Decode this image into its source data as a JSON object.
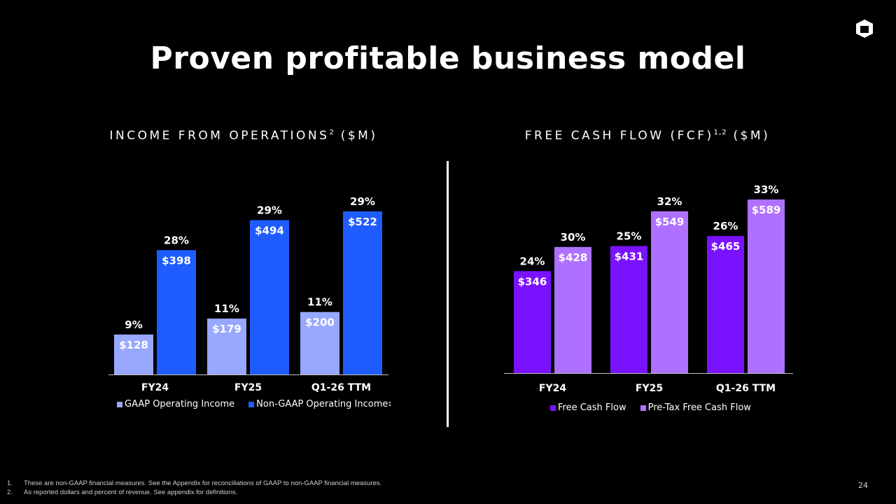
{
  "title": "Proven profitable business model",
  "page_number": "24",
  "footnotes": [
    {
      "num": "1.",
      "text": "These are non-GAAP financial measures. See the Appendix for reconciliations of GAAP to non-GAAP financial measures."
    },
    {
      "num": "2.",
      "text": "As reported dollars and percent of revenue. See appendix for definitions."
    }
  ],
  "chart_data": [
    {
      "type": "bar",
      "title": "INCOME FROM OPERATIONS",
      "title_sup": "2",
      "title_suffix": " ($M)",
      "categories": [
        "FY24",
        "FY25",
        "Q1-26 TTM"
      ],
      "ylim": [
        0,
        560
      ],
      "grid": false,
      "legend_position": "bottom",
      "series": [
        {
          "name": "GAAP Operating Income",
          "name_sup": "",
          "color": "#98a8ff",
          "values": [
            128,
            179,
            200
          ],
          "value_labels": [
            "$128",
            "$179",
            "$200"
          ],
          "percent_labels": [
            "9%",
            "11%",
            "11%"
          ]
        },
        {
          "name": "Non-GAAP Operating Income",
          "name_sup": "1",
          "color": "#1f5cff",
          "values": [
            398,
            494,
            522
          ],
          "value_labels": [
            "$398",
            "$494",
            "$522"
          ],
          "percent_labels": [
            "28%",
            "29%",
            "29%"
          ]
        }
      ]
    },
    {
      "type": "bar",
      "title": "FREE CASH FLOW (FCF)",
      "title_sup": "1,2",
      "title_suffix": " ($M)",
      "categories": [
        "FY24",
        "FY25",
        "Q1-26 TTM"
      ],
      "ylim": [
        0,
        640
      ],
      "grid": false,
      "legend_position": "bottom",
      "series": [
        {
          "name": "Free Cash Flow",
          "name_sup": "",
          "color": "#7a12ff",
          "values": [
            346,
            431,
            465
          ],
          "value_labels": [
            "$346",
            "$431",
            "$465"
          ],
          "percent_labels": [
            "24%",
            "25%",
            "26%"
          ]
        },
        {
          "name": "Pre-Tax Free Cash Flow",
          "name_sup": "",
          "color": "#b070ff",
          "values": [
            428,
            549,
            589
          ],
          "value_labels": [
            "$428",
            "$549",
            "$589"
          ],
          "percent_labels": [
            "30%",
            "32%",
            "33%"
          ]
        }
      ]
    }
  ]
}
